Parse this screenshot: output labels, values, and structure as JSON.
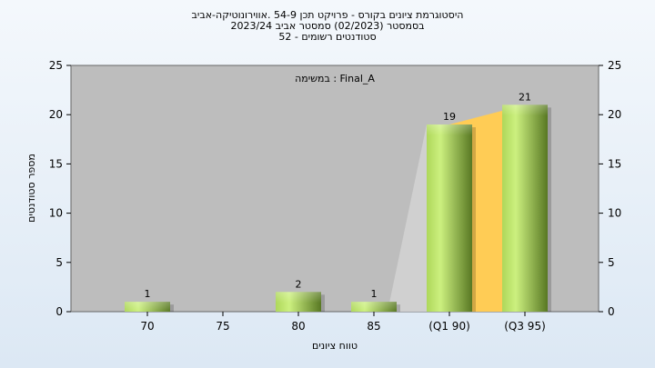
{
  "chart_data": {
    "type": "bar",
    "title_lines": [
      "היסטוגרמת ציונים בקורס - פרויקט תכן 54-9 .אווירונוטיקה-אביב",
      "בסמסטר  (02/2023)  סמסטר אביב 2023/24",
      "סטודנטים רשומים - 52"
    ],
    "annotation": "במשימה : Final_A",
    "categories": [
      "70",
      "75",
      "80",
      "85",
      "(Q1 90)",
      "(Q3 95)"
    ],
    "values": [
      1,
      0,
      2,
      1,
      19,
      21
    ],
    "data_labels": [
      "1",
      "",
      "2",
      "1",
      "19",
      "21"
    ],
    "xlabel": "טווח ציונים",
    "ylabel": "מספר סטודנטים",
    "ylim": [
      0,
      25
    ],
    "yticks": [
      0,
      5,
      10,
      15,
      20,
      25
    ],
    "grid": false,
    "colors": {
      "plot_bg": "#bdbdbd",
      "bar_light": "#c9ef7c",
      "bar_dark": "#5b7a25",
      "quartile_fill": "#ffcc55",
      "trend_fill": "#d2d2d2"
    }
  }
}
